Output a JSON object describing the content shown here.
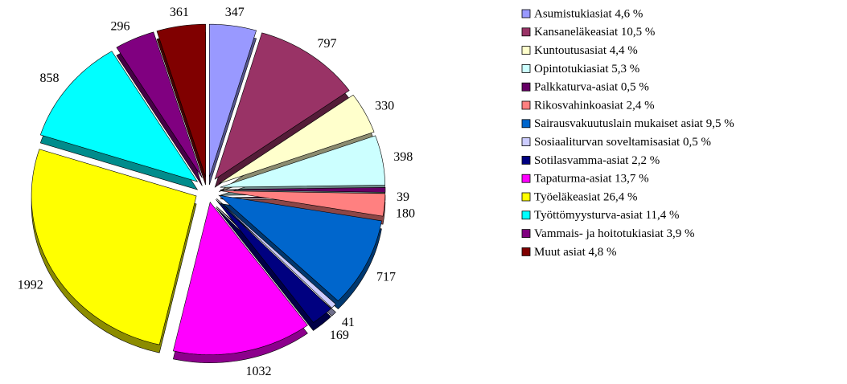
{
  "chart_data": {
    "type": "pie",
    "categories": [
      "Asumistukiasiat 4,6 %",
      "Kansaneläkeasiat 10,5 %",
      "Kuntoutusasiat 4,4 %",
      "Opintotukiasiat 5,3 %",
      "Palkkaturva-asiat 0,5 %",
      "Rikosvahinkoasiat 2,4 %",
      "Sairausvakuutuslain mukaiset asiat 9,5 %",
      "Sosiaaliturvan soveltamisasiat 0,5 %",
      "Sotilasvamma-asiat 2,2 %",
      "Tapaturma-asiat 13,7 %",
      "Työeläkeasiat 26,4 %",
      "Työttömyysturva-asiat 11,4 %",
      "Vammais- ja hoitotukiasiat 3,9 %",
      "Muut asiat 4,8 %"
    ],
    "values": [
      347,
      797,
      330,
      398,
      39,
      180,
      717,
      41,
      169,
      1032,
      1992,
      858,
      296,
      361
    ],
    "colors": [
      "#9999ff",
      "#993366",
      "#ffffcc",
      "#ccffff",
      "#660066",
      "#ff8080",
      "#0066cc",
      "#ccccff",
      "#000080",
      "#ff00ff",
      "#ffff00",
      "#00ffff",
      "#800080",
      "#800000"
    ],
    "legend": "right"
  }
}
